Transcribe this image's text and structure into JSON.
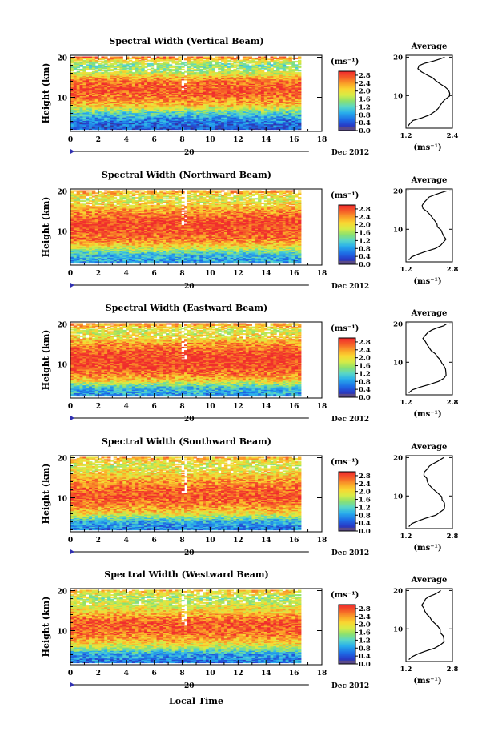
{
  "figure": {
    "xlabel": "Local Time",
    "ylabel": "Height (km)",
    "date_label": "Dec 2012",
    "day_label": "20",
    "avg_title": "Average",
    "unit_label": "(ms⁻¹)"
  },
  "chart_data": [
    {
      "type": "heatmap",
      "title": "Spectral Width (Vertical Beam)",
      "x_ticks": [
        "0",
        "2",
        "4",
        "6",
        "8",
        "10",
        "12",
        "14",
        "16",
        "18"
      ],
      "xlim": [
        0,
        18
      ],
      "data_xlim": [
        0,
        16.5
      ],
      "y_ticks": [
        "20",
        "10"
      ],
      "ylim": [
        1.5,
        20.5
      ],
      "colorbar_ticks": [
        "2.8",
        "2.4",
        "2.0",
        "1.6",
        "1.2",
        "0.8",
        "0.4",
        "0.0"
      ],
      "colorbar_range": [
        0.0,
        3.0
      ],
      "profile_bands": [
        [
          2,
          0.4
        ],
        [
          4,
          0.6
        ],
        [
          6,
          1.2
        ],
        [
          8,
          2.2
        ],
        [
          10,
          2.6
        ],
        [
          12,
          2.8
        ],
        [
          14,
          2.6
        ],
        [
          16,
          1.8
        ],
        [
          18,
          1.4
        ],
        [
          20,
          2.6
        ]
      ],
      "average": {
        "type": "line",
        "x_ticks": [
          "1.2",
          "2.4"
        ],
        "xlim": [
          1.2,
          2.4
        ],
        "x": [
          1.25,
          1.3,
          1.4,
          1.6,
          1.8,
          1.95,
          2.05,
          2.1,
          2.15,
          2.2,
          2.3,
          2.35,
          2.3,
          2.2,
          2.1,
          2.0,
          1.9,
          1.75,
          1.6,
          1.5,
          1.55,
          1.7,
          1.9,
          2.05,
          2.2
        ],
        "y": [
          2,
          2.8,
          3.5,
          4.2,
          5,
          5.8,
          6.6,
          7.4,
          8.2,
          9,
          9.8,
          10.6,
          11.4,
          12.2,
          13,
          13.8,
          14.6,
          15.4,
          16.2,
          17,
          17.8,
          18.4,
          19,
          19.5,
          20
        ]
      }
    },
    {
      "type": "heatmap",
      "title": "Spectral Width (Northward Beam)",
      "x_ticks": [
        "0",
        "2",
        "4",
        "6",
        "8",
        "10",
        "12",
        "14",
        "16",
        "18"
      ],
      "xlim": [
        0,
        18
      ],
      "data_xlim": [
        0,
        16.5
      ],
      "y_ticks": [
        "20",
        "10"
      ],
      "ylim": [
        1.5,
        20.5
      ],
      "colorbar_ticks": [
        "2.8",
        "2.4",
        "2.0",
        "1.6",
        "1.2",
        "0.8",
        "0.4",
        "0.0"
      ],
      "colorbar_range": [
        0.0,
        3.0
      ],
      "profile_bands": [
        [
          2,
          0.8
        ],
        [
          4,
          1.0
        ],
        [
          6,
          2.0
        ],
        [
          8,
          2.6
        ],
        [
          10,
          2.8
        ],
        [
          12,
          2.9
        ],
        [
          14,
          2.6
        ],
        [
          16,
          2.2
        ],
        [
          18,
          1.8
        ],
        [
          20,
          2.4
        ]
      ],
      "average": {
        "type": "line",
        "x_ticks": [
          "1.2",
          "2.8"
        ],
        "xlim": [
          1.2,
          2.8
        ],
        "x": [
          1.3,
          1.4,
          1.6,
          1.9,
          2.2,
          2.4,
          2.5,
          2.55,
          2.5,
          2.45,
          2.4,
          2.3,
          2.25,
          2.2,
          2.1,
          2.0,
          1.9,
          1.8,
          1.75,
          1.8,
          1.9,
          2.0,
          2.2,
          2.4,
          2.6
        ],
        "y": [
          2,
          2.8,
          3.5,
          4.2,
          5,
          5.8,
          6.6,
          7.4,
          8.2,
          9,
          9.8,
          10.6,
          11.4,
          12.2,
          13,
          13.8,
          14.6,
          15.4,
          16.2,
          17,
          17.8,
          18.4,
          19,
          19.5,
          20
        ]
      }
    },
    {
      "type": "heatmap",
      "title": "Spectral Width (Eastward Beam)",
      "x_ticks": [
        "0",
        "2",
        "4",
        "6",
        "8",
        "10",
        "12",
        "14",
        "16",
        "18"
      ],
      "xlim": [
        0,
        18
      ],
      "data_xlim": [
        0,
        16.5
      ],
      "y_ticks": [
        "20",
        "10"
      ],
      "ylim": [
        1.5,
        20.5
      ],
      "colorbar_ticks": [
        "2.8",
        "2.4",
        "2.0",
        "1.6",
        "1.2",
        "0.8",
        "0.4",
        "0.0"
      ],
      "colorbar_range": [
        0.0,
        3.0
      ],
      "profile_bands": [
        [
          2,
          0.8
        ],
        [
          4,
          1.0
        ],
        [
          6,
          2.2
        ],
        [
          8,
          2.7
        ],
        [
          10,
          2.9
        ],
        [
          12,
          2.9
        ],
        [
          14,
          2.6
        ],
        [
          16,
          2.2
        ],
        [
          18,
          1.8
        ],
        [
          20,
          2.4
        ]
      ],
      "average": {
        "type": "line",
        "x_ticks": [
          "1.2",
          "2.8"
        ],
        "xlim": [
          1.2,
          2.8
        ],
        "x": [
          1.3,
          1.4,
          1.7,
          2.0,
          2.3,
          2.5,
          2.6,
          2.6,
          2.55,
          2.5,
          2.45,
          2.4,
          2.3,
          2.2,
          2.1,
          2.0,
          1.9,
          1.85,
          1.8,
          1.85,
          1.95,
          2.1,
          2.3,
          2.5,
          2.6
        ],
        "y": [
          2,
          2.8,
          3.5,
          4.2,
          5,
          5.8,
          6.6,
          7.4,
          8.2,
          9,
          9.8,
          10.6,
          11.4,
          12.2,
          13,
          13.8,
          14.6,
          15.4,
          16.2,
          17,
          17.8,
          18.4,
          19,
          19.5,
          20
        ]
      }
    },
    {
      "type": "heatmap",
      "title": "Spectral Width (Southward Beam)",
      "x_ticks": [
        "0",
        "2",
        "4",
        "6",
        "8",
        "10",
        "12",
        "14",
        "16",
        "18"
      ],
      "xlim": [
        0,
        18
      ],
      "data_xlim": [
        0,
        16.5
      ],
      "y_ticks": [
        "20",
        "10"
      ],
      "ylim": [
        1.5,
        20.5
      ],
      "colorbar_ticks": [
        "2.8",
        "2.4",
        "2.0",
        "1.6",
        "1.2",
        "0.8",
        "0.4",
        "0.0"
      ],
      "colorbar_range": [
        0.0,
        3.0
      ],
      "profile_bands": [
        [
          2,
          0.6
        ],
        [
          4,
          0.9
        ],
        [
          6,
          2.0
        ],
        [
          8,
          2.5
        ],
        [
          10,
          2.8
        ],
        [
          12,
          2.7
        ],
        [
          14,
          2.4
        ],
        [
          16,
          2.1
        ],
        [
          18,
          1.8
        ],
        [
          20,
          2.3
        ]
      ],
      "average": {
        "type": "line",
        "x_ticks": [
          "1.2",
          "2.8"
        ],
        "xlim": [
          1.2,
          2.8
        ],
        "x": [
          1.3,
          1.4,
          1.6,
          1.9,
          2.2,
          2.4,
          2.5,
          2.55,
          2.5,
          2.45,
          2.4,
          2.3,
          2.2,
          2.1,
          2.0,
          1.95,
          1.9,
          1.85,
          1.8,
          1.9,
          2.0,
          2.1,
          2.3,
          2.4,
          2.5
        ],
        "y": [
          2,
          2.8,
          3.5,
          4.2,
          5,
          5.8,
          6.6,
          7.4,
          8.2,
          9,
          9.8,
          10.6,
          11.4,
          12.2,
          13,
          13.8,
          14.6,
          15.4,
          16.2,
          17,
          17.8,
          18.4,
          19,
          19.5,
          20
        ]
      }
    },
    {
      "type": "heatmap",
      "title": "Spectral Width (Westward Beam)",
      "x_ticks": [
        "0",
        "2",
        "4",
        "6",
        "8",
        "10",
        "12",
        "14",
        "16",
        "18"
      ],
      "xlim": [
        0,
        18
      ],
      "data_xlim": [
        0,
        16.5
      ],
      "y_ticks": [
        "20",
        "10"
      ],
      "ylim": [
        1.5,
        20.5
      ],
      "colorbar_ticks": [
        "2.8",
        "2.4",
        "2.0",
        "1.6",
        "1.2",
        "0.8",
        "0.4",
        "0.0"
      ],
      "colorbar_range": [
        0.0,
        3.0
      ],
      "profile_bands": [
        [
          2,
          0.6
        ],
        [
          4,
          0.8
        ],
        [
          6,
          1.8
        ],
        [
          8,
          2.4
        ],
        [
          10,
          2.7
        ],
        [
          12,
          2.8
        ],
        [
          14,
          2.3
        ],
        [
          16,
          1.9
        ],
        [
          18,
          1.6
        ],
        [
          20,
          2.2
        ]
      ],
      "average": {
        "type": "line",
        "x_ticks": [
          "1.2",
          "2.8"
        ],
        "xlim": [
          1.2,
          2.8
        ],
        "x": [
          1.3,
          1.4,
          1.6,
          1.9,
          2.2,
          2.4,
          2.5,
          2.5,
          2.45,
          2.4,
          2.35,
          2.3,
          2.2,
          2.1,
          2.0,
          1.9,
          1.85,
          1.8,
          1.75,
          1.8,
          1.9,
          2.0,
          2.2,
          2.3,
          2.4
        ],
        "y": [
          2,
          2.8,
          3.5,
          4.2,
          5,
          5.8,
          6.6,
          7.4,
          8.2,
          9,
          9.8,
          10.6,
          11.4,
          12.2,
          13,
          13.8,
          14.6,
          15.4,
          16.2,
          17,
          17.8,
          18.4,
          19,
          19.5,
          20
        ]
      }
    }
  ]
}
